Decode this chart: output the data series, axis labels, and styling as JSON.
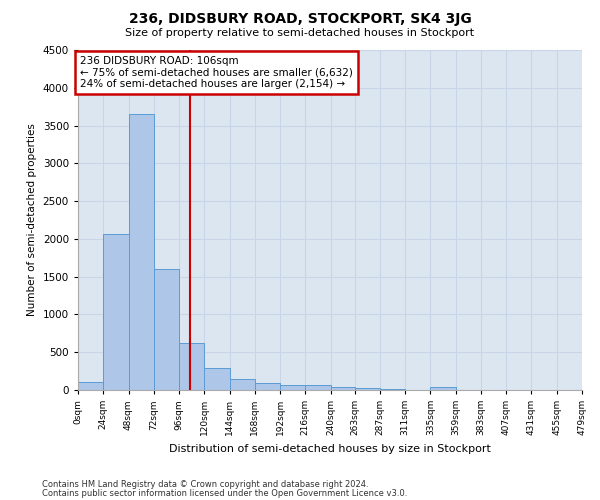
{
  "title": "236, DIDSBURY ROAD, STOCKPORT, SK4 3JG",
  "subtitle": "Size of property relative to semi-detached houses in Stockport",
  "xlabel": "Distribution of semi-detached houses by size in Stockport",
  "ylabel": "Number of semi-detached properties",
  "annotation_title": "236 DIDSBURY ROAD: 106sqm",
  "annotation_line1": "← 75% of semi-detached houses are smaller (6,632)",
  "annotation_line2": "24% of semi-detached houses are larger (2,154) →",
  "property_size": 106,
  "bin_edges": [
    0,
    24,
    48,
    72,
    96,
    120,
    144,
    168,
    192,
    216,
    240,
    263,
    287,
    311,
    335,
    359,
    383,
    407,
    431,
    455,
    479
  ],
  "bar_heights": [
    100,
    2060,
    3650,
    1600,
    620,
    290,
    140,
    95,
    70,
    60,
    40,
    30,
    10,
    0,
    40,
    0,
    0,
    0,
    0,
    0
  ],
  "bar_color": "#aec6e8",
  "bar_edge_color": "#5b9bd5",
  "vline_color": "#cc0000",
  "annotation_box_color": "#cc0000",
  "grid_color": "#c8d4e8",
  "background_color": "#dce6f0",
  "ylim": [
    0,
    4500
  ],
  "yticks": [
    0,
    500,
    1000,
    1500,
    2000,
    2500,
    3000,
    3500,
    4000,
    4500
  ],
  "footer1": "Contains HM Land Registry data © Crown copyright and database right 2024.",
  "footer2": "Contains public sector information licensed under the Open Government Licence v3.0."
}
